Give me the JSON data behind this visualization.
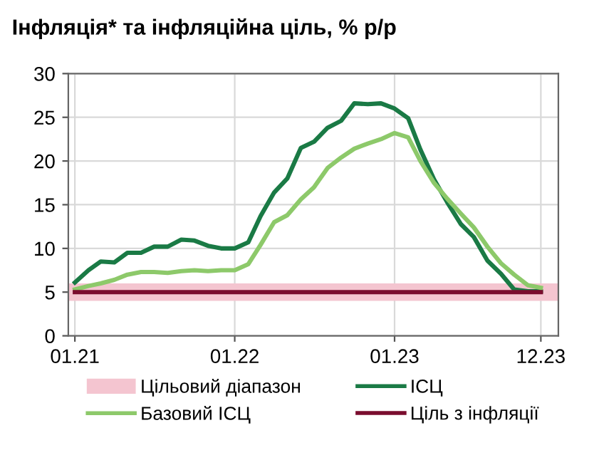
{
  "chart_data": {
    "type": "line",
    "title": "Інфляція* та інфляційна ціль, % р/р",
    "x": [
      "2021-01",
      "2021-02",
      "2021-03",
      "2021-04",
      "2021-05",
      "2021-06",
      "2021-07",
      "2021-08",
      "2021-09",
      "2021-10",
      "2021-11",
      "2021-12",
      "2022-01",
      "2022-02",
      "2022-03",
      "2022-04",
      "2022-05",
      "2022-06",
      "2022-07",
      "2022-08",
      "2022-09",
      "2022-10",
      "2022-11",
      "2022-12",
      "2023-01",
      "2023-02",
      "2023-03",
      "2023-04",
      "2023-05",
      "2023-06",
      "2023-07",
      "2023-08",
      "2023-09",
      "2023-10",
      "2023-11",
      "2023-12"
    ],
    "series": [
      {
        "name": "ІСЦ",
        "color": "#1a7a45",
        "values": [
          6.1,
          7.5,
          8.5,
          8.4,
          9.5,
          9.5,
          10.2,
          10.2,
          11.0,
          10.9,
          10.3,
          10.0,
          10.0,
          10.7,
          13.7,
          16.4,
          18.0,
          21.5,
          22.2,
          23.8,
          24.6,
          26.6,
          26.5,
          26.6,
          26.0,
          24.9,
          21.3,
          17.9,
          15.3,
          12.8,
          11.3,
          8.6,
          7.1,
          5.3,
          5.1,
          5.1
        ]
      },
      {
        "name": "Базовий ІСЦ",
        "color": "#8dc96a",
        "values": [
          5.3,
          5.7,
          6.0,
          6.4,
          7.0,
          7.3,
          7.3,
          7.2,
          7.4,
          7.5,
          7.4,
          7.5,
          7.5,
          8.2,
          10.4,
          13.0,
          13.8,
          15.6,
          17.0,
          19.2,
          20.4,
          21.4,
          22.0,
          22.5,
          23.2,
          22.7,
          20.0,
          17.5,
          15.7,
          14.0,
          12.4,
          10.2,
          8.3,
          7.0,
          5.8,
          5.5
        ]
      },
      {
        "name": "Ціль з інфляції",
        "color": "#7a0c2e",
        "values": [
          5,
          5,
          5,
          5,
          5,
          5,
          5,
          5,
          5,
          5,
          5,
          5,
          5,
          5,
          5,
          5,
          5,
          5,
          5,
          5,
          5,
          5,
          5,
          5,
          5,
          5,
          5,
          5,
          5,
          5,
          5,
          5,
          5,
          5,
          5,
          5
        ]
      }
    ],
    "bands": [
      {
        "axis": "y",
        "from": 4,
        "to": 6,
        "label": "Цільовий діапазон",
        "color": "#f4c5d0"
      }
    ],
    "xlim": [
      "2020-12-17",
      "2024-01-10"
    ],
    "xticks": [
      {
        "value": "2021-01",
        "label": "01.21"
      },
      {
        "value": "2022-01",
        "label": "01.22"
      },
      {
        "value": "2023-01",
        "label": "01.23"
      },
      {
        "value": "2023-12",
        "label": "12.23"
      }
    ],
    "ylim": [
      0,
      30
    ],
    "yticks": [
      0,
      5,
      10,
      15,
      20,
      25,
      30
    ],
    "grid": true,
    "legend": "bottom",
    "marker": "none",
    "line_style": "solid"
  }
}
